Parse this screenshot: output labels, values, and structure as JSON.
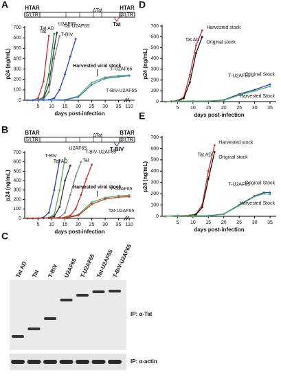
{
  "chart_data": [
    {
      "type": "line",
      "panel": "A",
      "ylabel": "p24 (ng/mL)",
      "xlabel": "days post-infection",
      "construct": {
        "left": "HTAR",
        "left_ltr": "5'LTR",
        "middle": "ΔTat",
        "right": "HTAR",
        "right_ltr": "3'LTR",
        "insert": "Tat",
        "insert_color": "#d62728"
      },
      "annotation": "Harvested viral stock",
      "xlim": [
        0,
        112
      ],
      "xbreak": [
        37,
        108
      ],
      "xticks": [
        5,
        10,
        15,
        20,
        25,
        30,
        35,
        110
      ],
      "ylim": [
        0,
        700
      ],
      "yticks": [
        0,
        100,
        200,
        300,
        400,
        500,
        600,
        700
      ],
      "series": [
        {
          "name": "Tat",
          "color": "#d62728",
          "x": [
            1,
            3,
            5,
            7,
            9
          ],
          "values": [
            0,
            2,
            20,
            180,
            620
          ]
        },
        {
          "name": "U2AF65",
          "color": "#1a8a3a",
          "x": [
            1,
            3,
            5,
            7,
            9,
            11
          ],
          "values": [
            0,
            0,
            3,
            30,
            250,
            640
          ]
        },
        {
          "name": "Tat AD",
          "color": "#333333",
          "x": [
            1,
            3,
            5,
            7,
            9,
            11,
            12
          ],
          "values": [
            0,
            0,
            2,
            15,
            150,
            500,
            650
          ]
        },
        {
          "name": "Tat-U2AF65",
          "color": "#7f7f7f",
          "x": [
            1,
            3,
            5,
            7,
            9,
            11,
            13
          ],
          "values": [
            0,
            0,
            2,
            10,
            80,
            400,
            620
          ]
        },
        {
          "name": "T-BIV",
          "color": "#1f3fd0",
          "x": [
            1,
            3,
            5,
            7,
            9,
            11,
            13,
            15,
            17,
            19
          ],
          "values": [
            0,
            0,
            0,
            2,
            5,
            20,
            100,
            250,
            420,
            590
          ]
        },
        {
          "name": "T-U2AF65",
          "color": "#4caf50",
          "x": [
            1,
            5,
            10,
            15,
            20,
            25,
            30,
            35,
            110
          ],
          "values": [
            0,
            2,
            3,
            5,
            40,
            170,
            220,
            235,
            240
          ]
        },
        {
          "name": "T-BIV-U2AF65",
          "color": "#3f7fd0",
          "x": [
            1,
            5,
            10,
            15,
            20,
            25,
            30,
            35,
            110
          ],
          "values": [
            0,
            1,
            2,
            4,
            30,
            150,
            210,
            225,
            235
          ]
        }
      ]
    },
    {
      "type": "line",
      "panel": "B",
      "ylabel": "p24 (ng/mL)",
      "xlabel": "days post-infection",
      "construct": {
        "left": "BTAR",
        "left_ltr": "5'LTR",
        "middle": "ΔTat",
        "right": "BTAR",
        "right_ltr": "3'LTR",
        "insert": "T-BIV",
        "insert_color": "#1f3fd0"
      },
      "annotation": "Harvested viral stock",
      "xlim": [
        0,
        112
      ],
      "xbreak": [
        37,
        108
      ],
      "xticks": [
        5,
        10,
        15,
        20,
        25,
        30,
        35,
        110
      ],
      "ylim": [
        0,
        700
      ],
      "yticks": [
        0,
        100,
        200,
        300,
        400,
        500,
        600,
        700
      ],
      "series": [
        {
          "name": "T-BIV",
          "color": "#1f3fd0",
          "x": [
            1,
            3,
            5,
            7,
            9,
            11,
            13
          ],
          "values": [
            0,
            0,
            2,
            10,
            60,
            300,
            620
          ]
        },
        {
          "name": "U2AF65",
          "color": "#4caf50",
          "x": [
            1,
            3,
            5,
            7,
            9,
            11,
            13,
            15
          ],
          "values": [
            0,
            0,
            0,
            2,
            8,
            40,
            300,
            640
          ]
        },
        {
          "name": "Tat AD",
          "color": "#333333",
          "x": [
            1,
            3,
            5,
            7,
            9,
            11,
            13,
            15,
            17
          ],
          "values": [
            0,
            0,
            0,
            2,
            5,
            20,
            120,
            400,
            560
          ]
        },
        {
          "name": "T-BIV-U2AF65",
          "color": "#7f7f7f",
          "x": [
            1,
            5,
            9,
            13,
            15,
            17,
            19,
            21
          ],
          "values": [
            0,
            0,
            2,
            10,
            60,
            250,
            450,
            600
          ]
        },
        {
          "name": "Tat",
          "color": "#d62728",
          "x": [
            1,
            5,
            9,
            13,
            15,
            17,
            19,
            21,
            23,
            25
          ],
          "values": [
            0,
            0,
            2,
            5,
            10,
            30,
            100,
            250,
            420,
            570
          ]
        },
        {
          "name": "T-U2AF65",
          "color": "#4caf50",
          "x": [
            1,
            5,
            10,
            15,
            20,
            25,
            30,
            35,
            110
          ],
          "values": [
            0,
            1,
            3,
            5,
            40,
            170,
            220,
            240,
            245
          ]
        },
        {
          "name": "Tat-U2AF65",
          "color": "#d62728",
          "x": [
            1,
            5,
            10,
            15,
            20,
            25,
            30,
            35,
            110
          ],
          "values": [
            0,
            1,
            2,
            4,
            30,
            150,
            205,
            225,
            230
          ]
        }
      ]
    },
    {
      "type": "line",
      "panel": "D",
      "ylabel": "p24 (ng/mL)",
      "xlabel": "days post-infection",
      "annotations": [
        "Tat AD",
        "T-U2AF65"
      ],
      "xlim": [
        0,
        37
      ],
      "xticks": [
        5,
        10,
        15,
        20,
        25,
        30,
        35
      ],
      "ylim": [
        0,
        700
      ],
      "yticks": [
        0,
        100,
        200,
        300,
        400,
        500,
        600,
        700
      ],
      "series": [
        {
          "name": "Harvested stock",
          "color": "#d62728",
          "x": [
            1,
            3,
            5,
            7,
            9,
            11,
            13
          ],
          "values": [
            0,
            2,
            10,
            40,
            250,
            520,
            660
          ]
        },
        {
          "name": "Original stock",
          "color": "#111111",
          "x": [
            1,
            3,
            5,
            7,
            9,
            11,
            13
          ],
          "values": [
            0,
            1,
            6,
            30,
            180,
            450,
            600
          ]
        },
        {
          "name": "Original Stock",
          "color": "#1f3fd0",
          "x": [
            1,
            5,
            10,
            15,
            20,
            25,
            30,
            35
          ],
          "values": [
            0,
            5,
            5,
            5,
            15,
            70,
            110,
            160
          ]
        },
        {
          "name": "Harvested Stock",
          "color": "#4caf50",
          "x": [
            1,
            5,
            10,
            15,
            20,
            25,
            30,
            35
          ],
          "values": [
            0,
            5,
            5,
            5,
            12,
            60,
            100,
            140
          ]
        }
      ]
    },
    {
      "type": "line",
      "panel": "E",
      "ylabel": "p24 (ng/mL)",
      "xlabel": "days post-infection",
      "annotations": [
        "Tat AD",
        "T-U2AF65"
      ],
      "xlim": [
        0,
        37
      ],
      "xticks": [
        5,
        10,
        15,
        20,
        25,
        30,
        35
      ],
      "ylim": [
        0,
        700
      ],
      "yticks": [
        0,
        100,
        200,
        300,
        400,
        500,
        600,
        700
      ],
      "series": [
        {
          "name": "Harvested stock",
          "color": "#d62728",
          "x": [
            1,
            5,
            9,
            11,
            13,
            15,
            17
          ],
          "values": [
            0,
            5,
            8,
            20,
            100,
            400,
            630
          ]
        },
        {
          "name": "Original stock",
          "color": "#111111",
          "x": [
            1,
            5,
            9,
            11,
            13,
            15,
            17
          ],
          "values": [
            0,
            5,
            6,
            15,
            80,
            330,
            570
          ]
        },
        {
          "name": "Original Stock",
          "color": "#1f3fd0",
          "x": [
            1,
            5,
            10,
            15,
            20,
            25,
            30,
            33,
            35
          ],
          "values": [
            0,
            5,
            5,
            5,
            20,
            100,
            180,
            210,
            210
          ]
        },
        {
          "name": "Harvested Stock",
          "color": "#4caf50",
          "x": [
            1,
            5,
            10,
            15,
            20,
            25,
            30,
            33,
            35
          ],
          "values": [
            0,
            5,
            5,
            5,
            18,
            95,
            175,
            200,
            195
          ]
        }
      ]
    }
  ],
  "blot": {
    "panel": "C",
    "lanes": [
      "Tat AD",
      "Tat",
      "T-BIV",
      "U2AF65",
      "T-U2AF65",
      "Tat-U2AF65",
      "T-BIV-U2AF65"
    ],
    "labels": [
      "IP: α-Tat",
      "IP: α-actin"
    ]
  }
}
